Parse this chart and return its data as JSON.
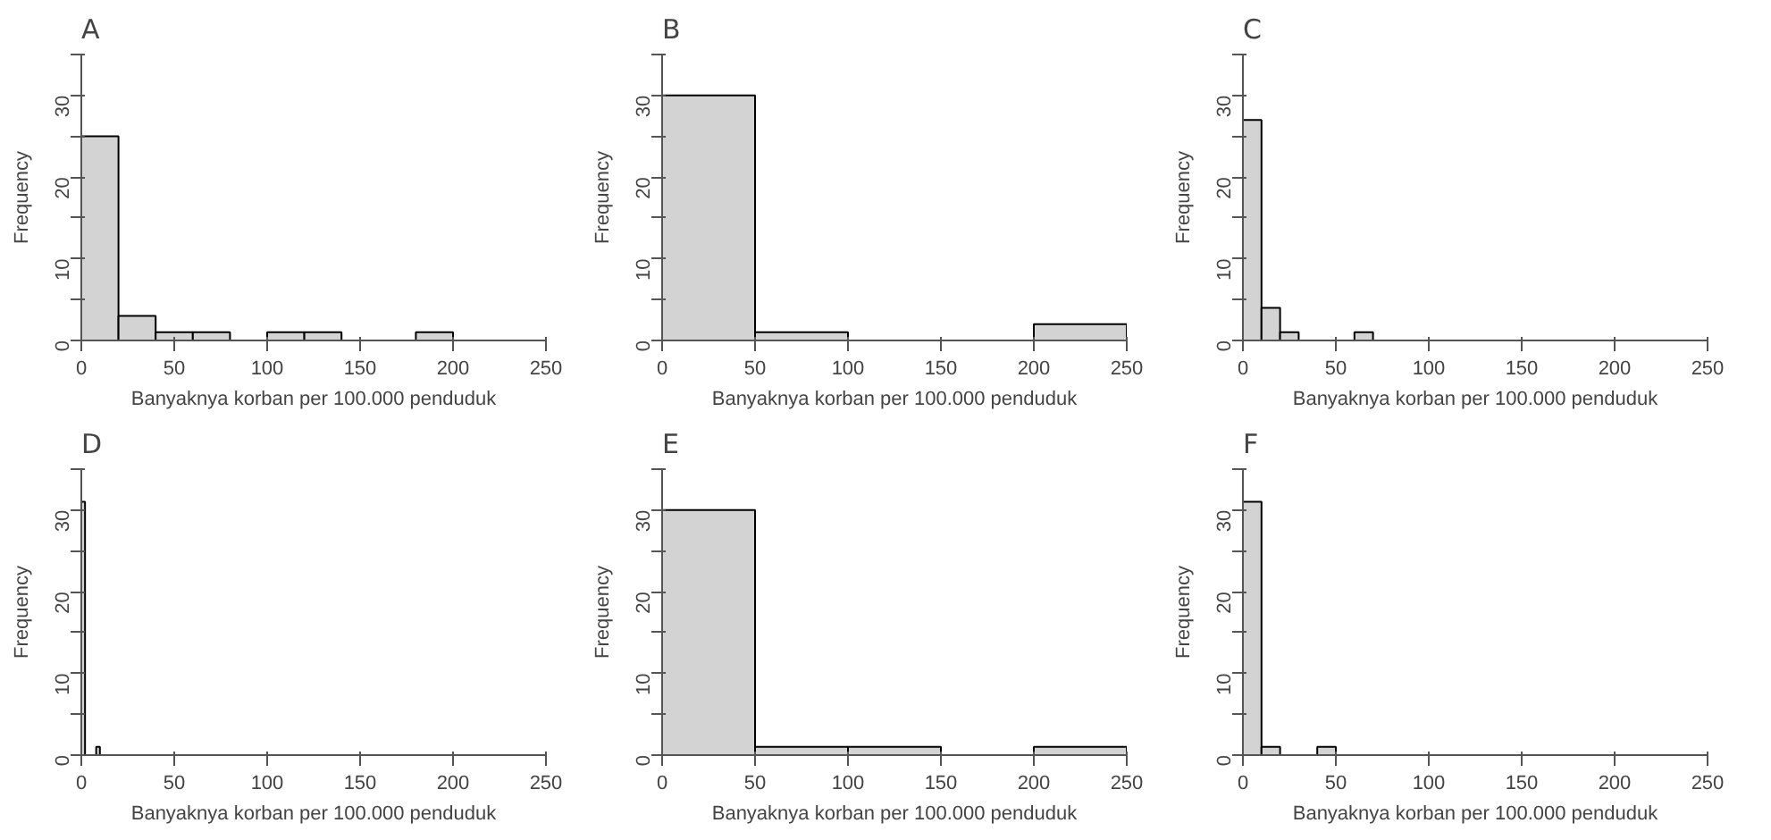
{
  "chart_data": [
    {
      "type": "histogram",
      "title": "A",
      "xlabel": "Banyaknya korban per 100.000 penduduk",
      "ylabel": "Frequency",
      "bins": [
        0,
        20,
        40,
        60,
        80,
        100,
        120,
        140,
        160,
        180,
        200
      ],
      "values": [
        25,
        3,
        1,
        1,
        0,
        1,
        1,
        0,
        0,
        1
      ],
      "color": "#d3d3d3",
      "xlim": [
        0,
        250
      ],
      "xticks": [
        0,
        50,
        100,
        150,
        200,
        250
      ],
      "ylim": [
        0,
        35
      ],
      "yticks": [
        0,
        {
          "value": 5,
          "label": null
        },
        10,
        {
          "value": 15,
          "label": null
        },
        20,
        {
          "value": 25,
          "label": null
        },
        30,
        {
          "value": 35,
          "label": null
        }
      ],
      "grid": false
    },
    {
      "type": "histogram",
      "title": "B",
      "xlabel": "Banyaknya korban per 100.000 penduduk",
      "ylabel": "Frequency",
      "bins": [
        0,
        50,
        100,
        150,
        200,
        250
      ],
      "values": [
        30,
        1,
        0,
        0,
        2
      ],
      "color": "#d3d3d3",
      "xlim": [
        0,
        250
      ],
      "xticks": [
        0,
        50,
        100,
        150,
        200,
        250
      ],
      "ylim": [
        0,
        35
      ],
      "yticks": [
        0,
        {
          "value": 5,
          "label": null
        },
        10,
        {
          "value": 15,
          "label": null
        },
        20,
        {
          "value": 25,
          "label": null
        },
        30,
        {
          "value": 35,
          "label": null
        }
      ],
      "grid": false
    },
    {
      "type": "histogram",
      "title": "C",
      "xlabel": "Banyaknya korban per 100.000 penduduk",
      "ylabel": "Frequency",
      "bins": [
        0,
        10,
        20,
        30,
        40,
        50,
        60,
        70
      ],
      "values": [
        27,
        4,
        1,
        0,
        0,
        0,
        1
      ],
      "color": "#d3d3d3",
      "xlim": [
        0,
        250
      ],
      "xticks": [
        0,
        50,
        100,
        150,
        200,
        250
      ],
      "ylim": [
        0,
        35
      ],
      "yticks": [
        0,
        {
          "value": 5,
          "label": null
        },
        10,
        {
          "value": 15,
          "label": null
        },
        20,
        {
          "value": 25,
          "label": null
        },
        30,
        {
          "value": 35,
          "label": null
        }
      ],
      "grid": false
    },
    {
      "type": "histogram",
      "title": "D",
      "xlabel": "Banyaknya korban per 100.000 penduduk",
      "ylabel": "Frequency",
      "bins": [
        0,
        2,
        4,
        6,
        8,
        10
      ],
      "values": [
        31,
        0,
        0,
        0,
        1
      ],
      "color": "#d3d3d3",
      "xlim": [
        0,
        250
      ],
      "xticks": [
        0,
        50,
        100,
        150,
        200,
        250
      ],
      "ylim": [
        0,
        35
      ],
      "yticks": [
        0,
        {
          "value": 5,
          "label": null
        },
        10,
        {
          "value": 15,
          "label": null
        },
        20,
        {
          "value": 25,
          "label": null
        },
        30,
        {
          "value": 35,
          "label": null
        }
      ],
      "grid": false
    },
    {
      "type": "histogram",
      "title": "E",
      "xlabel": "Banyaknya korban per 100.000 penduduk",
      "ylabel": "Frequency",
      "bins": [
        0,
        50,
        100,
        150,
        200,
        250
      ],
      "values": [
        30,
        1,
        1,
        0,
        1
      ],
      "color": "#d3d3d3",
      "xlim": [
        0,
        250
      ],
      "xticks": [
        0,
        50,
        100,
        150,
        200,
        250
      ],
      "ylim": [
        0,
        35
      ],
      "yticks": [
        0,
        {
          "value": 5,
          "label": null
        },
        10,
        {
          "value": 15,
          "label": null
        },
        20,
        {
          "value": 25,
          "label": null
        },
        30,
        {
          "value": 35,
          "label": null
        }
      ],
      "grid": false
    },
    {
      "type": "histogram",
      "title": "F",
      "xlabel": "Banyaknya korban per 100.000 penduduk",
      "ylabel": "Frequency",
      "bins": [
        0,
        10,
        20,
        30,
        40,
        50
      ],
      "values": [
        31,
        1,
        0,
        0,
        1
      ],
      "color": "#d3d3d3",
      "xlim": [
        0,
        250
      ],
      "xticks": [
        0,
        50,
        100,
        150,
        200,
        250
      ],
      "ylim": [
        0,
        35
      ],
      "yticks": [
        0,
        {
          "value": 5,
          "label": null
        },
        10,
        {
          "value": 15,
          "label": null
        },
        20,
        {
          "value": 25,
          "label": null
        },
        30,
        {
          "value": 35,
          "label": null
        }
      ],
      "grid": false
    }
  ]
}
